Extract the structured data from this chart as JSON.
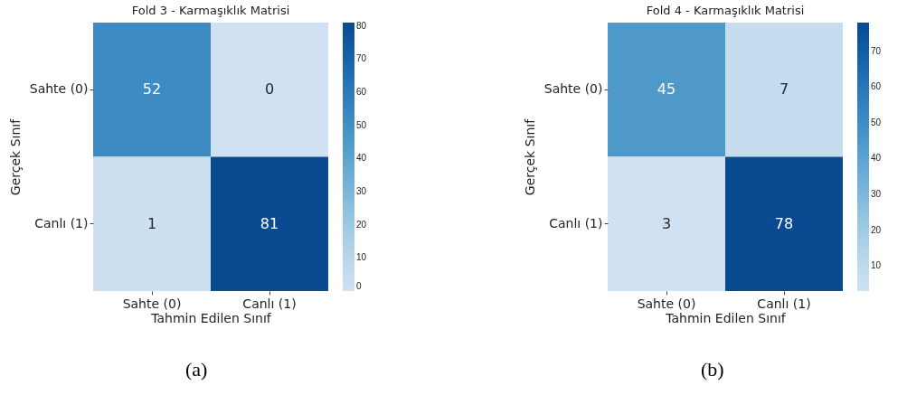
{
  "chart_data": [
    {
      "type": "heatmap",
      "title": "Fold 3 - Karmaşıklık Matrisi",
      "xlabel": "Tahmin Edilen Sınıf",
      "ylabel": "Gerçek Sınıf",
      "categories": [
        "Sahte (0)",
        "Canlı (1)"
      ],
      "y_categories": [
        "Sahte (0)",
        "Canlı (1)"
      ],
      "cells": [
        [
          52,
          0
        ],
        [
          1,
          81
        ]
      ],
      "clim": [
        0,
        81
      ],
      "cticks": [
        0,
        10,
        20,
        30,
        40,
        50,
        60,
        70,
        80
      ],
      "data_labels": true,
      "annotations": [
        "(a)"
      ]
    },
    {
      "type": "heatmap",
      "title": "Fold 4 - Karmaşıklık Matrisi",
      "xlabel": "Tahmin Edilen Sınıf",
      "ylabel": "Gerçek Sınıf",
      "categories": [
        "Sahte (0)",
        "Canlı (1)"
      ],
      "y_categories": [
        "Sahte (0)",
        "Canlı (1)"
      ],
      "cells": [
        [
          45,
          7
        ],
        [
          3,
          78
        ]
      ],
      "clim": [
        3,
        78
      ],
      "cticks": [
        10,
        20,
        30,
        40,
        50,
        60,
        70
      ],
      "data_labels": true,
      "annotations": [
        "(b)"
      ]
    }
  ]
}
